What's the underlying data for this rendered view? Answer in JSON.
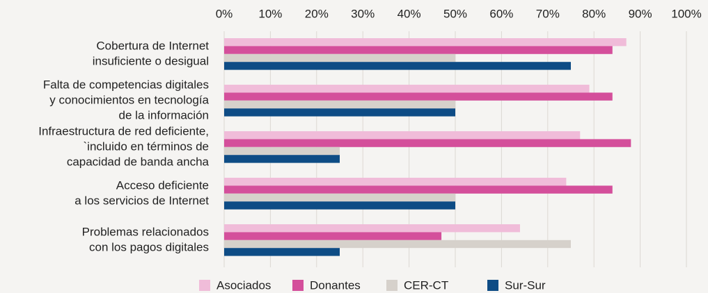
{
  "chart_data": {
    "type": "barh",
    "categories": [
      [
        "Cobertura de Internet",
        "insuficiente o desigual"
      ],
      [
        "Falta de competencias digitales",
        "y conocimientos en tecnología",
        "de la información"
      ],
      [
        "Infraestructura de red deficiente,",
        "`incluido en términos de",
        "capacidad de banda ancha"
      ],
      [
        "Acceso deficiente",
        "a los servicios de Internet"
      ],
      [
        "Problemas relacionados",
        "con los pagos digitales"
      ]
    ],
    "series": [
      {
        "name": "Asociados",
        "color": "#f0bcd9",
        "values": [
          87,
          79,
          77,
          74,
          64
        ]
      },
      {
        "name": "Donantes",
        "color": "#d44f9b",
        "values": [
          84,
          84,
          88,
          84,
          47
        ]
      },
      {
        "name": "CER-CT",
        "color": "#d6d1cb",
        "values": [
          50,
          50,
          25,
          50,
          75
        ]
      },
      {
        "name": "Sur-Sur",
        "color": "#0e4c85",
        "values": [
          75,
          50,
          25,
          50,
          25
        ]
      }
    ],
    "xlim": [
      0,
      100
    ],
    "xticks": [
      {
        "value": 0,
        "label": "0%"
      },
      {
        "value": 10,
        "label": "10%"
      },
      {
        "value": 20,
        "label": "20%"
      },
      {
        "value": 30,
        "label": "30%"
      },
      {
        "value": 40,
        "label": "40%"
      },
      {
        "value": 50,
        "label": "50%"
      },
      {
        "value": 60,
        "label": "60%"
      },
      {
        "value": 70,
        "label": "70%"
      },
      {
        "value": 80,
        "label": "80%"
      },
      {
        "value": 90,
        "label": "90%"
      },
      {
        "value": 100,
        "label": "100%"
      }
    ],
    "grid": true,
    "legend": "bottom"
  }
}
